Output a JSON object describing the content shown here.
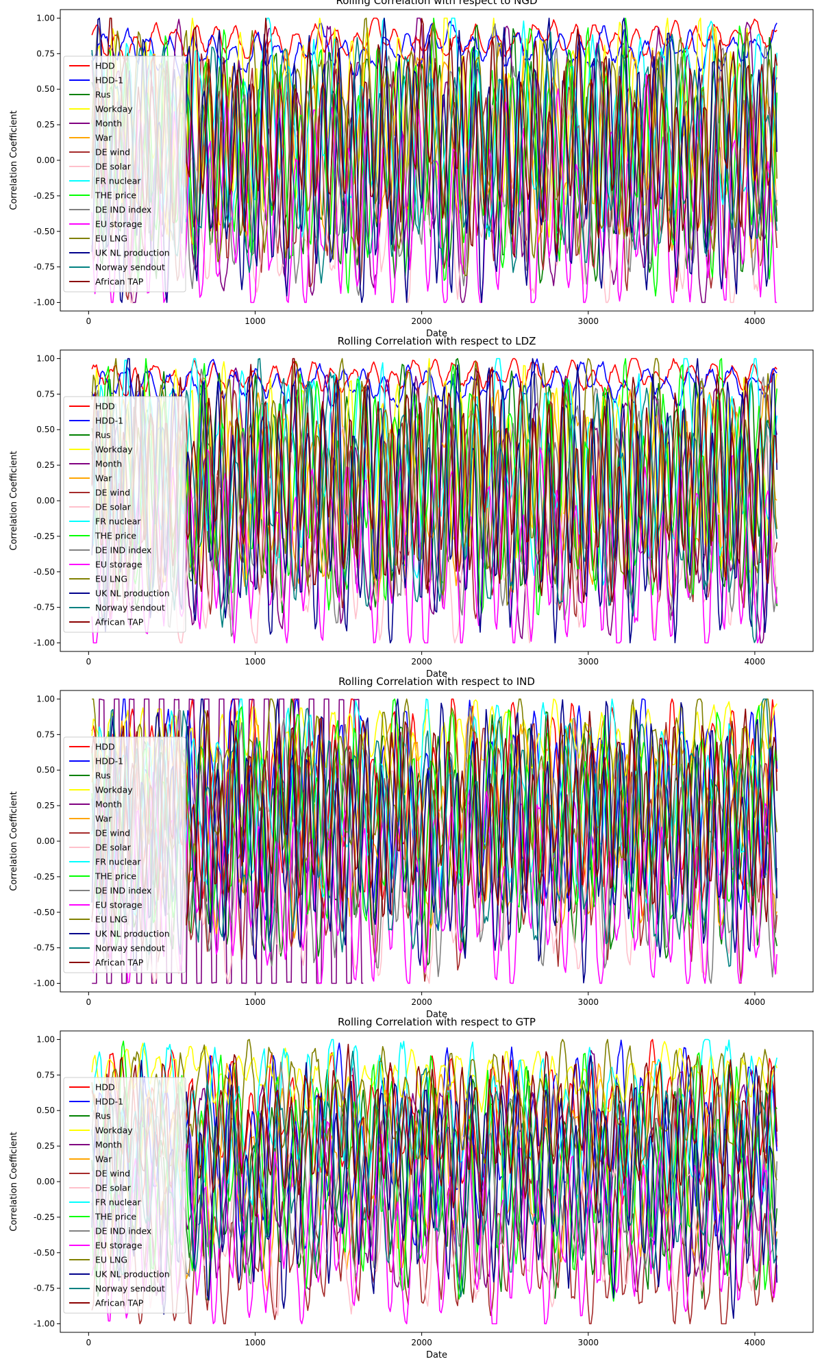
{
  "chart_data": [
    {
      "type": "line",
      "title": "Rolling Correlation with respect to NGD",
      "xlabel": "Date",
      "ylabel": "Correlation Coefficient",
      "xlim": [
        -170,
        4350
      ],
      "ylim": [
        -1.06,
        1.06
      ],
      "xticks": [
        0,
        1000,
        2000,
        3000,
        4000
      ],
      "yticks": [
        -1.0,
        -0.75,
        -0.5,
        -0.25,
        0.0,
        0.25,
        0.5,
        0.75,
        1.0
      ],
      "legend_position": "upper-left",
      "series": [
        {
          "name": "HDD",
          "color": "#ff0000",
          "x_range": [
            20,
            4140
          ],
          "center": 0.84,
          "amp": 0.08,
          "period": 120,
          "noise": 0.04
        },
        {
          "name": "HDD-1",
          "color": "#0000ff",
          "x_range": [
            20,
            4140
          ],
          "center": 0.78,
          "amp": 0.1,
          "period": 130,
          "noise": 0.05
        },
        {
          "name": "Rus",
          "color": "#008000",
          "x_range": [
            20,
            4140
          ],
          "center": 0.05,
          "amp": 0.6,
          "period": 110,
          "noise": 0.12
        },
        {
          "name": "Workday",
          "color": "#ffff00",
          "x_range": [
            20,
            4140
          ],
          "center": 0.3,
          "amp": 0.5,
          "period": 95,
          "noise": 0.12
        },
        {
          "name": "Month",
          "color": "#800080",
          "x_range": [
            20,
            4140
          ],
          "center": 0.0,
          "amp": 0.7,
          "period": 180,
          "noise": 0.1
        },
        {
          "name": "War",
          "color": "#ffa500",
          "x_range": [
            20,
            4140
          ],
          "center": 0.1,
          "amp": 0.5,
          "period": 160,
          "noise": 0.12
        },
        {
          "name": "DE wind",
          "color": "#a52a2a",
          "x_range": [
            20,
            4140
          ],
          "center": -0.1,
          "amp": 0.55,
          "period": 100,
          "noise": 0.13
        },
        {
          "name": "DE solar",
          "color": "#ffc0cb",
          "x_range": [
            20,
            4140
          ],
          "center": -0.25,
          "amp": 0.5,
          "period": 150,
          "noise": 0.12
        },
        {
          "name": "FR nuclear",
          "color": "#00ffff",
          "x_range": [
            20,
            4140
          ],
          "center": 0.25,
          "amp": 0.5,
          "period": 140,
          "noise": 0.12
        },
        {
          "name": "THE price",
          "color": "#00ff00",
          "x_range": [
            20,
            4140
          ],
          "center": 0.1,
          "amp": 0.6,
          "period": 115,
          "noise": 0.13
        },
        {
          "name": "DE IND index",
          "color": "#808080",
          "x_range": [
            20,
            4140
          ],
          "center": 0.0,
          "amp": 0.6,
          "period": 125,
          "noise": 0.12
        },
        {
          "name": "EU storage",
          "color": "#ff00ff",
          "x_range": [
            20,
            4140
          ],
          "center": -0.35,
          "amp": 0.55,
          "period": 105,
          "noise": 0.12
        },
        {
          "name": "EU LNG",
          "color": "#808000",
          "x_range": [
            20,
            4140
          ],
          "center": 0.1,
          "amp": 0.6,
          "period": 135,
          "noise": 0.12
        },
        {
          "name": "UK NL production",
          "color": "#00008b",
          "x_range": [
            20,
            4140
          ],
          "center": 0.0,
          "amp": 0.7,
          "period": 90,
          "noise": 0.12
        },
        {
          "name": "Norway sendout",
          "color": "#008080",
          "x_range": [
            20,
            4140
          ],
          "center": 0.05,
          "amp": 0.6,
          "period": 145,
          "noise": 0.12
        },
        {
          "name": "African TAP",
          "color": "#8b0000",
          "x_range": [
            20,
            4140
          ],
          "center": 0.15,
          "amp": 0.5,
          "period": 85,
          "noise": 0.13
        }
      ]
    },
    {
      "type": "line",
      "title": "Rolling Correlation with respect to LDZ",
      "xlabel": "Date",
      "ylabel": "Correlation Coefficient",
      "xlim": [
        -170,
        4350
      ],
      "ylim": [
        -1.06,
        1.06
      ],
      "xticks": [
        0,
        1000,
        2000,
        3000,
        4000
      ],
      "yticks": [
        -1.0,
        -0.75,
        -0.5,
        -0.25,
        0.0,
        0.25,
        0.5,
        0.75,
        1.0
      ],
      "legend_position": "upper-left",
      "series": [
        {
          "name": "HDD",
          "color": "#ff0000",
          "x_range": [
            20,
            4140
          ],
          "center": 0.88,
          "amp": 0.07,
          "period": 120,
          "noise": 0.04
        },
        {
          "name": "HDD-1",
          "color": "#0000ff",
          "x_range": [
            20,
            4140
          ],
          "center": 0.83,
          "amp": 0.09,
          "period": 130,
          "noise": 0.05
        },
        {
          "name": "Rus",
          "color": "#008000",
          "x_range": [
            20,
            4140
          ],
          "center": 0.1,
          "amp": 0.6,
          "period": 110,
          "noise": 0.12
        },
        {
          "name": "Workday",
          "color": "#ffff00",
          "x_range": [
            20,
            4140
          ],
          "center": 0.2,
          "amp": 0.5,
          "period": 95,
          "noise": 0.12
        },
        {
          "name": "Month",
          "color": "#800080",
          "x_range": [
            20,
            4140
          ],
          "center": 0.0,
          "amp": 0.7,
          "period": 180,
          "noise": 0.1
        },
        {
          "name": "War",
          "color": "#ffa500",
          "x_range": [
            20,
            4140
          ],
          "center": 0.1,
          "amp": 0.5,
          "period": 160,
          "noise": 0.12
        },
        {
          "name": "DE wind",
          "color": "#a52a2a",
          "x_range": [
            20,
            4140
          ],
          "center": -0.05,
          "amp": 0.55,
          "period": 100,
          "noise": 0.13
        },
        {
          "name": "DE solar",
          "color": "#ffc0cb",
          "x_range": [
            20,
            4140
          ],
          "center": -0.3,
          "amp": 0.5,
          "period": 150,
          "noise": 0.12
        },
        {
          "name": "FR nuclear",
          "color": "#00ffff",
          "x_range": [
            20,
            4140
          ],
          "center": 0.3,
          "amp": 0.5,
          "period": 140,
          "noise": 0.12
        },
        {
          "name": "THE price",
          "color": "#00ff00",
          "x_range": [
            20,
            4140
          ],
          "center": 0.1,
          "amp": 0.6,
          "period": 115,
          "noise": 0.13
        },
        {
          "name": "DE IND index",
          "color": "#808080",
          "x_range": [
            20,
            4140
          ],
          "center": 0.0,
          "amp": 0.6,
          "period": 125,
          "noise": 0.12
        },
        {
          "name": "EU storage",
          "color": "#ff00ff",
          "x_range": [
            20,
            4140
          ],
          "center": -0.4,
          "amp": 0.5,
          "period": 105,
          "noise": 0.12
        },
        {
          "name": "EU LNG",
          "color": "#808000",
          "x_range": [
            20,
            4140
          ],
          "center": 0.15,
          "amp": 0.6,
          "period": 135,
          "noise": 0.12
        },
        {
          "name": "UK NL production",
          "color": "#00008b",
          "x_range": [
            20,
            4140
          ],
          "center": 0.0,
          "amp": 0.7,
          "period": 90,
          "noise": 0.12
        },
        {
          "name": "Norway sendout",
          "color": "#008080",
          "x_range": [
            20,
            4140
          ],
          "center": 0.05,
          "amp": 0.6,
          "period": 145,
          "noise": 0.12
        },
        {
          "name": "African TAP",
          "color": "#8b0000",
          "x_range": [
            20,
            4140
          ],
          "center": 0.15,
          "amp": 0.55,
          "period": 85,
          "noise": 0.13
        }
      ]
    },
    {
      "type": "line",
      "title": "Rolling Correlation with respect to IND",
      "xlabel": "Date",
      "ylabel": "Correlation Coefficient",
      "xlim": [
        -170,
        4350
      ],
      "ylim": [
        -1.06,
        1.06
      ],
      "xticks": [
        0,
        1000,
        2000,
        3000,
        4000
      ],
      "yticks": [
        -1.0,
        -0.75,
        -0.5,
        -0.25,
        0.0,
        0.25,
        0.5,
        0.75,
        1.0
      ],
      "legend_position": "upper-left",
      "series": [
        {
          "name": "HDD",
          "color": "#ff0000",
          "x_range": [
            20,
            4140
          ],
          "center": 0.3,
          "amp": 0.55,
          "period": 120,
          "noise": 0.1
        },
        {
          "name": "HDD-1",
          "color": "#0000ff",
          "x_range": [
            20,
            4140
          ],
          "center": 0.25,
          "amp": 0.55,
          "period": 130,
          "noise": 0.1
        },
        {
          "name": "Rus",
          "color": "#008000",
          "x_range": [
            20,
            4140
          ],
          "center": 0.05,
          "amp": 0.6,
          "period": 110,
          "noise": 0.12
        },
        {
          "name": "Workday",
          "color": "#ffff00",
          "x_range": [
            20,
            4140
          ],
          "center": 0.7,
          "amp": 0.18,
          "period": 95,
          "noise": 0.07
        },
        {
          "name": "Month",
          "color": "#800080",
          "x_range": [
            20,
            1650
          ],
          "center": 0.0,
          "amp": 0.95,
          "period": 90,
          "noise": 0.02
        },
        {
          "name": "War",
          "color": "#ffa500",
          "x_range": [
            20,
            4140
          ],
          "center": 0.1,
          "amp": 0.5,
          "period": 160,
          "noise": 0.12
        },
        {
          "name": "DE wind",
          "color": "#a52a2a",
          "x_range": [
            20,
            4140
          ],
          "center": -0.05,
          "amp": 0.55,
          "period": 100,
          "noise": 0.13
        },
        {
          "name": "DE solar",
          "color": "#ffc0cb",
          "x_range": [
            20,
            4140
          ],
          "center": -0.25,
          "amp": 0.5,
          "period": 150,
          "noise": 0.12
        },
        {
          "name": "FR nuclear",
          "color": "#00ffff",
          "x_range": [
            20,
            4140
          ],
          "center": 0.3,
          "amp": 0.45,
          "period": 140,
          "noise": 0.12
        },
        {
          "name": "THE price",
          "color": "#00ff00",
          "x_range": [
            20,
            4140
          ],
          "center": 0.15,
          "amp": 0.55,
          "period": 115,
          "noise": 0.13
        },
        {
          "name": "DE IND index",
          "color": "#808080",
          "x_range": [
            20,
            4140
          ],
          "center": 0.0,
          "amp": 0.65,
          "period": 125,
          "noise": 0.12
        },
        {
          "name": "EU storage",
          "color": "#ff00ff",
          "x_range": [
            20,
            4140
          ],
          "center": -0.35,
          "amp": 0.5,
          "period": 105,
          "noise": 0.12
        },
        {
          "name": "EU LNG",
          "color": "#808000",
          "x_range": [
            20,
            4140
          ],
          "center": 0.4,
          "amp": 0.4,
          "period": 135,
          "noise": 0.12
        },
        {
          "name": "UK NL production",
          "color": "#00008b",
          "x_range": [
            20,
            4140
          ],
          "center": 0.05,
          "amp": 0.65,
          "period": 90,
          "noise": 0.12
        },
        {
          "name": "Norway sendout",
          "color": "#008080",
          "x_range": [
            20,
            4140
          ],
          "center": 0.05,
          "amp": 0.6,
          "period": 145,
          "noise": 0.12
        },
        {
          "name": "African TAP",
          "color": "#8b0000",
          "x_range": [
            20,
            4140
          ],
          "center": 0.2,
          "amp": 0.5,
          "period": 85,
          "noise": 0.13
        }
      ]
    },
    {
      "type": "line",
      "title": "Rolling Correlation with respect to GTP",
      "xlabel": "Date",
      "ylabel": "Correlation Coefficient",
      "xlim": [
        -170,
        4350
      ],
      "ylim": [
        -1.06,
        1.06
      ],
      "xticks": [
        0,
        1000,
        2000,
        3000,
        4000
      ],
      "yticks": [
        -1.0,
        -0.75,
        -0.5,
        -0.25,
        0.0,
        0.25,
        0.5,
        0.75,
        1.0
      ],
      "legend_position": "upper-left",
      "series": [
        {
          "name": "HDD",
          "color": "#ff0000",
          "x_range": [
            20,
            4140
          ],
          "center": 0.4,
          "amp": 0.35,
          "period": 120,
          "noise": 0.1
        },
        {
          "name": "HDD-1",
          "color": "#0000ff",
          "x_range": [
            20,
            4140
          ],
          "center": 0.25,
          "amp": 0.45,
          "period": 130,
          "noise": 0.1
        },
        {
          "name": "Rus",
          "color": "#008000",
          "x_range": [
            20,
            4140
          ],
          "center": 0.0,
          "amp": 0.55,
          "period": 110,
          "noise": 0.12
        },
        {
          "name": "Workday",
          "color": "#ffff00",
          "x_range": [
            20,
            4140
          ],
          "center": 0.72,
          "amp": 0.12,
          "period": 95,
          "noise": 0.06
        },
        {
          "name": "Month",
          "color": "#800080",
          "x_range": [
            20,
            4140
          ],
          "center": 0.0,
          "amp": 0.55,
          "period": 180,
          "noise": 0.1
        },
        {
          "name": "War",
          "color": "#ffa500",
          "x_range": [
            20,
            4140
          ],
          "center": 0.1,
          "amp": 0.45,
          "period": 160,
          "noise": 0.12
        },
        {
          "name": "DE wind",
          "color": "#a52a2a",
          "x_range": [
            20,
            4140
          ],
          "center": -0.45,
          "amp": 0.35,
          "period": 100,
          "noise": 0.12
        },
        {
          "name": "DE solar",
          "color": "#ffc0cb",
          "x_range": [
            20,
            4140
          ],
          "center": -0.2,
          "amp": 0.45,
          "period": 150,
          "noise": 0.12
        },
        {
          "name": "FR nuclear",
          "color": "#00ffff",
          "x_range": [
            20,
            4140
          ],
          "center": 0.4,
          "amp": 0.4,
          "period": 140,
          "noise": 0.12
        },
        {
          "name": "THE price",
          "color": "#00ff00",
          "x_range": [
            20,
            4140
          ],
          "center": 0.05,
          "amp": 0.55,
          "period": 115,
          "noise": 0.13
        },
        {
          "name": "DE IND index",
          "color": "#808080",
          "x_range": [
            20,
            4140
          ],
          "center": 0.0,
          "amp": 0.5,
          "period": 125,
          "noise": 0.12
        },
        {
          "name": "EU storage",
          "color": "#ff00ff",
          "x_range": [
            20,
            4140
          ],
          "center": -0.35,
          "amp": 0.45,
          "period": 105,
          "noise": 0.12
        },
        {
          "name": "EU LNG",
          "color": "#808000",
          "x_range": [
            20,
            4140
          ],
          "center": 0.5,
          "amp": 0.3,
          "period": 135,
          "noise": 0.1
        },
        {
          "name": "UK NL production",
          "color": "#00008b",
          "x_range": [
            20,
            4140
          ],
          "center": 0.0,
          "amp": 0.55,
          "period": 90,
          "noise": 0.12
        },
        {
          "name": "Norway sendout",
          "color": "#008080",
          "x_range": [
            20,
            4140
          ],
          "center": 0.05,
          "amp": 0.5,
          "period": 145,
          "noise": 0.12
        },
        {
          "name": "African TAP",
          "color": "#8b0000",
          "x_range": [
            20,
            4140
          ],
          "center": 0.35,
          "amp": 0.35,
          "period": 85,
          "noise": 0.12
        }
      ]
    }
  ]
}
